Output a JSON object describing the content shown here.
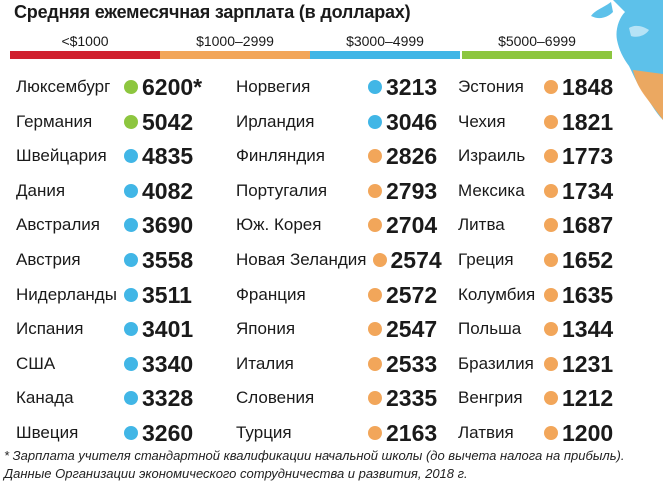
{
  "chart_data": {
    "type": "table",
    "title": "Средняя ежемесячная зарплата (в долларах)",
    "legend": [
      {
        "label": "<$1000",
        "color": "#d0202e"
      },
      {
        "label": "$1000–2999",
        "color": "#f2a65a"
      },
      {
        "label": "$3000–4999",
        "color": "#41b6e6"
      },
      {
        "label": "$5000–6999",
        "color": "#8dc63f"
      }
    ],
    "columns": [
      [
        {
          "country": "Люксембург",
          "value": "6200*",
          "color": "#8dc63f"
        },
        {
          "country": "Германия",
          "value": "5042",
          "color": "#8dc63f"
        },
        {
          "country": "Швейцария",
          "value": "4835",
          "color": "#41b6e6"
        },
        {
          "country": "Дания",
          "value": "4082",
          "color": "#41b6e6"
        },
        {
          "country": "Австралия",
          "value": "3690",
          "color": "#41b6e6"
        },
        {
          "country": "Австрия",
          "value": "3558",
          "color": "#41b6e6"
        },
        {
          "country": "Нидерланды",
          "value": "3511",
          "color": "#41b6e6"
        },
        {
          "country": "Испания",
          "value": "3401",
          "color": "#41b6e6"
        },
        {
          "country": "США",
          "value": "3340",
          "color": "#41b6e6"
        },
        {
          "country": "Канада",
          "value": "3328",
          "color": "#41b6e6"
        },
        {
          "country": "Швеция",
          "value": "3260",
          "color": "#41b6e6"
        }
      ],
      [
        {
          "country": "Норвегия",
          "value": "3213",
          "color": "#41b6e6"
        },
        {
          "country": "Ирландия",
          "value": "3046",
          "color": "#41b6e6"
        },
        {
          "country": "Финляндия",
          "value": "2826",
          "color": "#f2a65a"
        },
        {
          "country": "Португалия",
          "value": "2793",
          "color": "#f2a65a"
        },
        {
          "country": "Юж. Корея",
          "value": "2704",
          "color": "#f2a65a"
        },
        {
          "country": "Новая Зеландия",
          "value": "2574",
          "color": "#f2a65a"
        },
        {
          "country": "Франция",
          "value": "2572",
          "color": "#f2a65a"
        },
        {
          "country": "Япония",
          "value": "2547",
          "color": "#f2a65a"
        },
        {
          "country": "Италия",
          "value": "2533",
          "color": "#f2a65a"
        },
        {
          "country": "Словения",
          "value": "2335",
          "color": "#f2a65a"
        },
        {
          "country": "Турция",
          "value": "2163",
          "color": "#f2a65a"
        }
      ],
      [
        {
          "country": "Эстония",
          "value": "1848",
          "color": "#f2a65a"
        },
        {
          "country": "Чехия",
          "value": "1821",
          "color": "#f2a65a"
        },
        {
          "country": "Израиль",
          "value": "1773",
          "color": "#f2a65a"
        },
        {
          "country": "Мексика",
          "value": "1734",
          "color": "#f2a65a"
        },
        {
          "country": "Литва",
          "value": "1687",
          "color": "#f2a65a"
        },
        {
          "country": "Греция",
          "value": "1652",
          "color": "#f2a65a"
        },
        {
          "country": "Колумбия",
          "value": "1635",
          "color": "#f2a65a"
        },
        {
          "country": "Польша",
          "value": "1344",
          "color": "#f2a65a"
        },
        {
          "country": "Бразилия",
          "value": "1231",
          "color": "#f2a65a"
        },
        {
          "country": "Венгрия",
          "value": "1212",
          "color": "#f2a65a"
        },
        {
          "country": "Латвия",
          "value": "1200",
          "color": "#f2a65a"
        }
      ]
    ],
    "footnotes": [
      "* Зарплата учителя стандартной квалификации начальной школы (до вычета налога на прибыль).",
      "Данные Организации экономического сотрудничества и развития, 2018 г."
    ]
  }
}
